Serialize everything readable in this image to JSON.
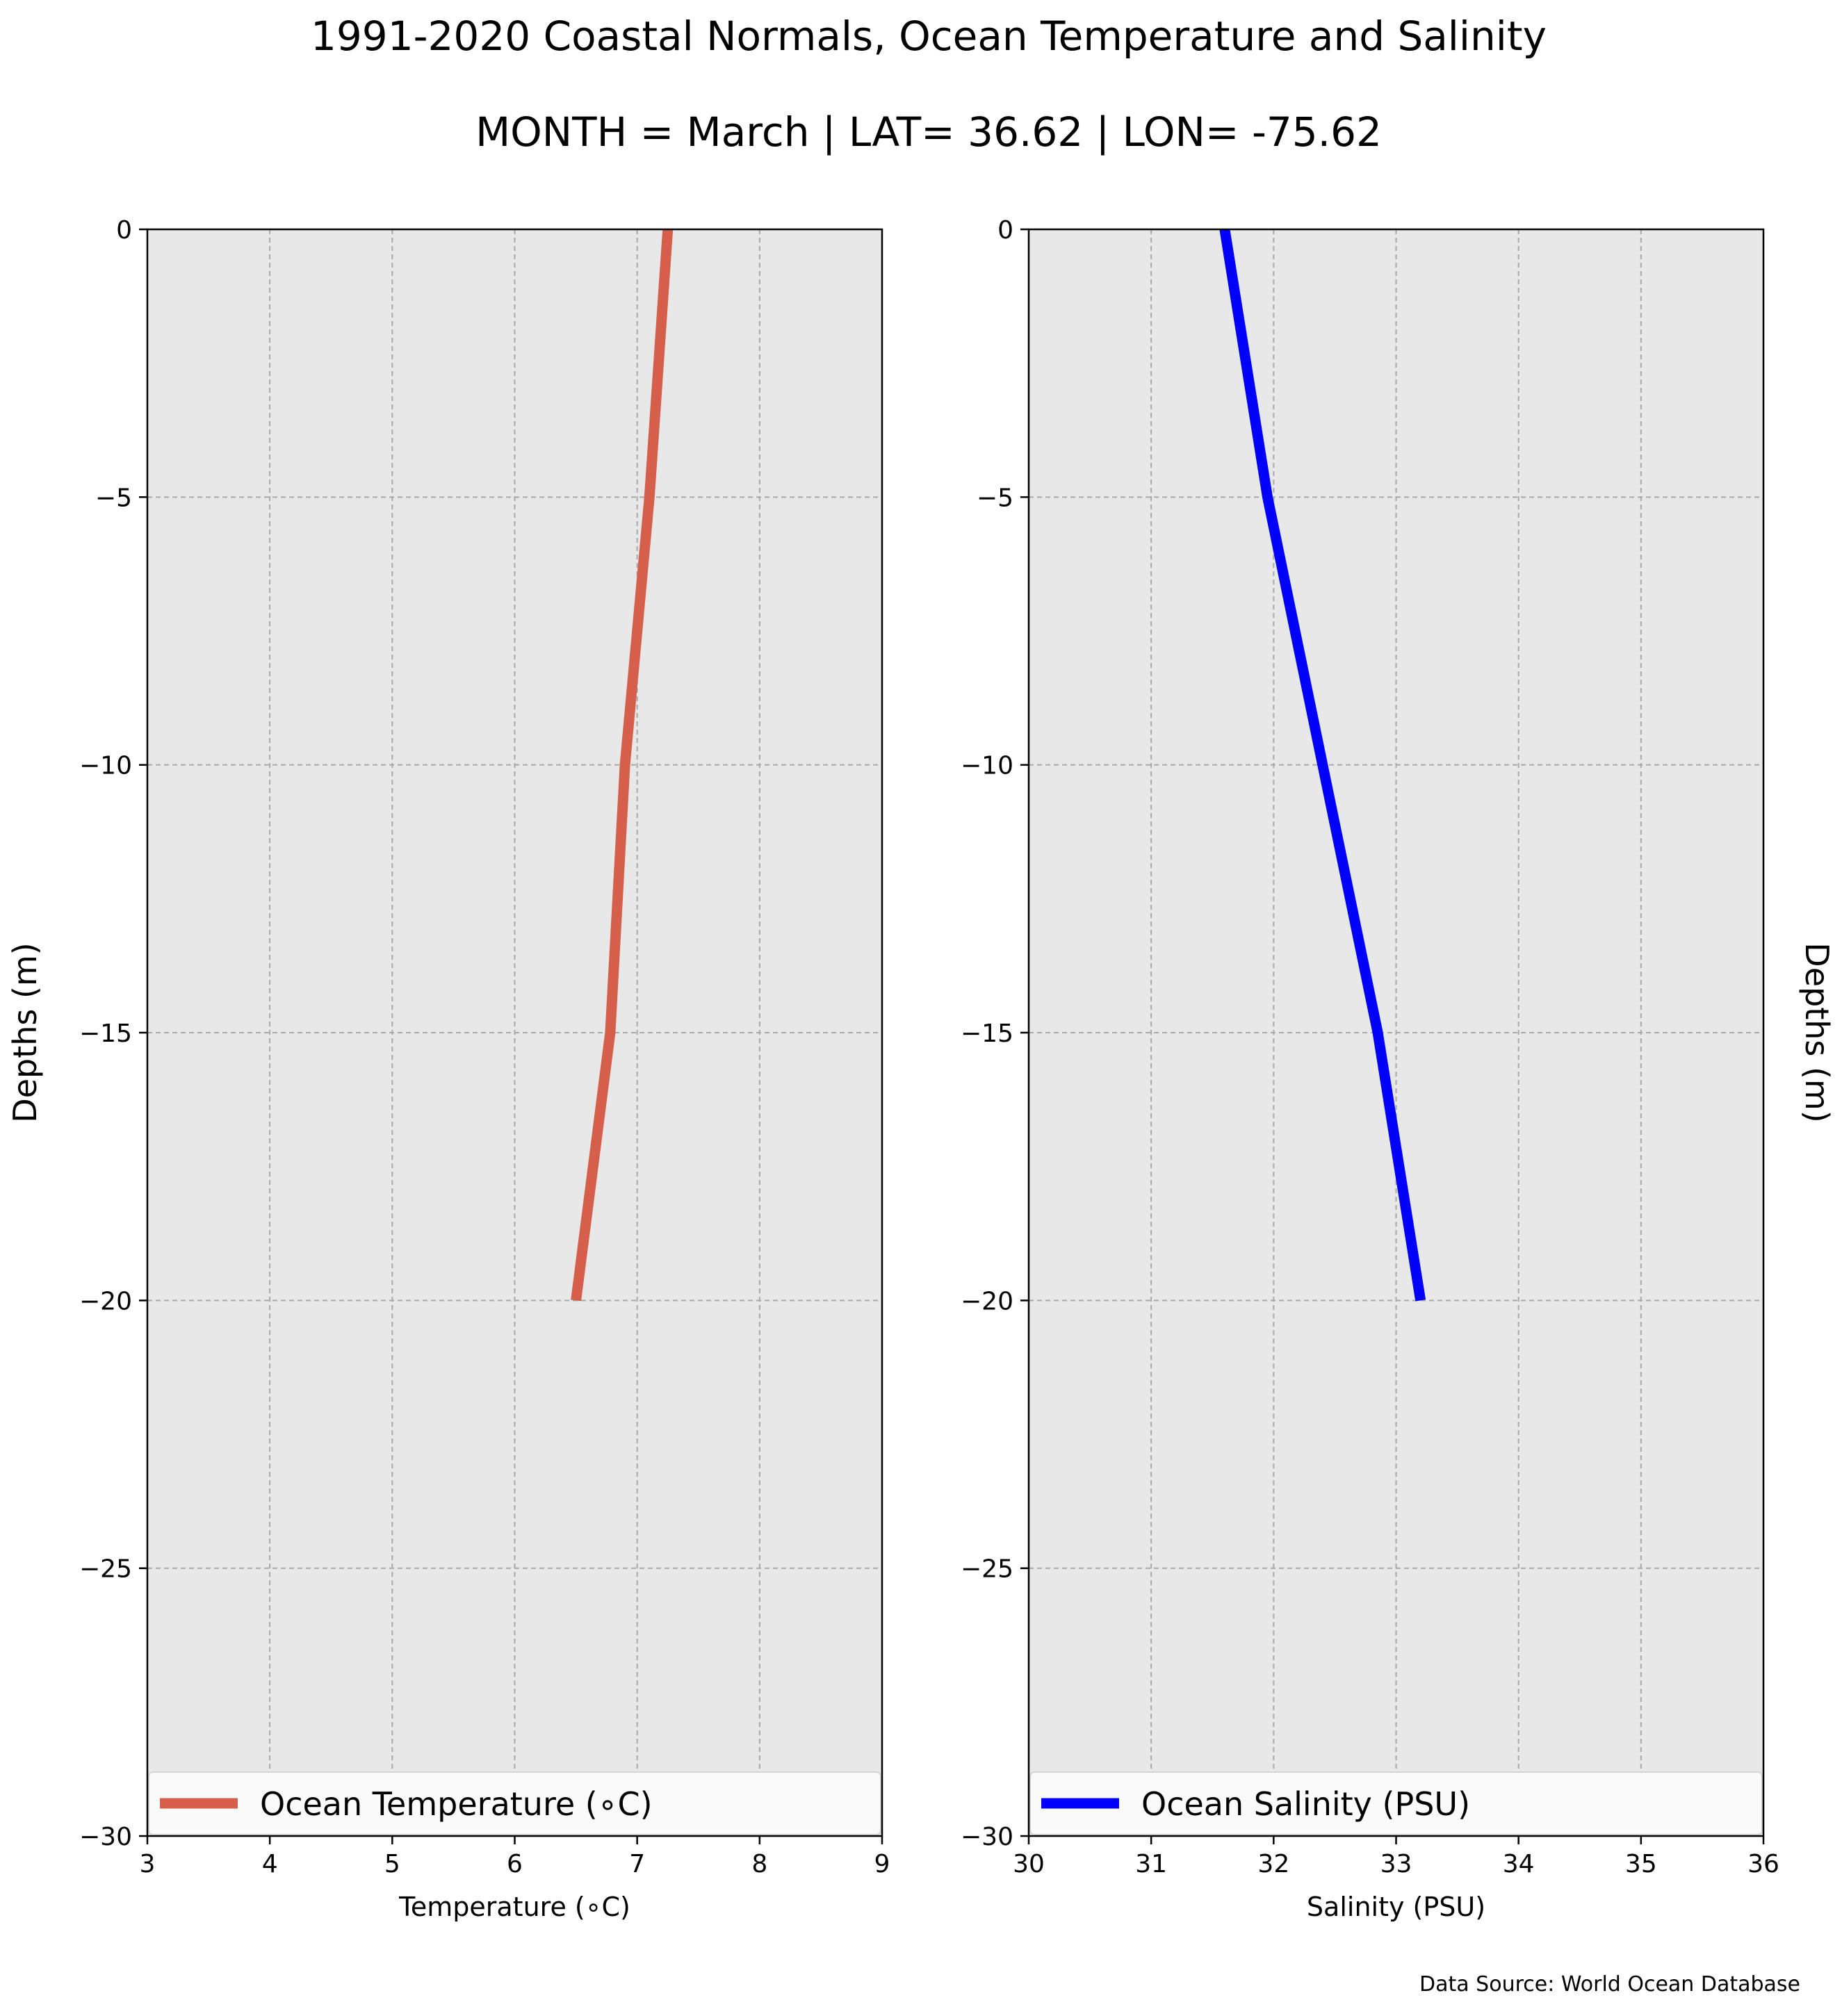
{
  "figure": {
    "title_line1": "1991-2020 Coastal Normals, Ocean Temperature and Salinity",
    "title_line2": "MONTH = March | LAT= 36.62 | LON= -75.62",
    "source_note": "Data Source: World Ocean Database"
  },
  "chart_data": [
    {
      "type": "line",
      "title": "",
      "xlabel": "Temperature (∘C)",
      "ylabel": "Depths (m)",
      "xlim": [
        3,
        9
      ],
      "ylim": [
        -30,
        0
      ],
      "xticks": [
        "3",
        "4",
        "5",
        "6",
        "7",
        "8",
        "9"
      ],
      "yticks": [
        "0",
        "−5",
        "−10",
        "−15",
        "−20",
        "−25",
        "−30"
      ],
      "grid": true,
      "legend_position": "lower-center",
      "series": [
        {
          "name": "Ocean Temperature (∘C)",
          "color": "#d65f4c",
          "x": [
            7.25,
            7.1,
            6.9,
            6.78,
            6.5
          ],
          "y": [
            0,
            -5,
            -10,
            -15,
            -20
          ]
        }
      ]
    },
    {
      "type": "line",
      "title": "",
      "xlabel": "Salinity (PSU)",
      "ylabel": "Depths (m)",
      "xlim": [
        30,
        36
      ],
      "ylim": [
        -30,
        0
      ],
      "xticks": [
        "30",
        "31",
        "32",
        "33",
        "34",
        "35",
        "36"
      ],
      "yticks": [
        "0",
        "−5",
        "−10",
        "−15",
        "−20",
        "−25",
        "−30"
      ],
      "grid": true,
      "legend_position": "lower-center",
      "series": [
        {
          "name": "Ocean Salinity (PSU)",
          "color": "#0000ff",
          "x": [
            31.6,
            31.95,
            32.4,
            32.85,
            33.2
          ],
          "y": [
            0,
            -5,
            -10,
            -15,
            -20
          ]
        }
      ]
    }
  ]
}
